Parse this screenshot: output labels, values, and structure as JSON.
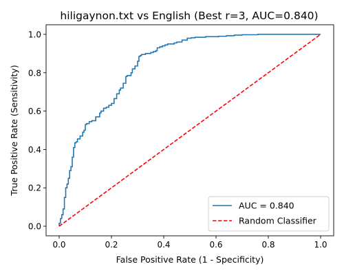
{
  "chart_data": {
    "type": "line",
    "title": "hiligaynon.txt vs English (Best r=3, AUC=0.840)",
    "xlabel": "False Positive Rate (1 - Specificity)",
    "ylabel": "True Positive Rate (Sensitivity)",
    "xlim": [
      -0.05,
      1.05
    ],
    "ylim": [
      -0.05,
      1.05
    ],
    "xticks": [
      "0.0",
      "0.2",
      "0.4",
      "0.6",
      "0.8",
      "1.0"
    ],
    "yticks": [
      "0.0",
      "0.2",
      "0.4",
      "0.6",
      "0.8",
      "1.0"
    ],
    "grid": false,
    "legend_position": "lower-right",
    "series": [
      {
        "name": "AUC = 0.840",
        "color": "#1f77b4",
        "style": "solid",
        "x": [
          0.0,
          0.0,
          0.005,
          0.005,
          0.01,
          0.01,
          0.015,
          0.015,
          0.02,
          0.02,
          0.025,
          0.025,
          0.03,
          0.03,
          0.035,
          0.035,
          0.04,
          0.04,
          0.045,
          0.045,
          0.05,
          0.05,
          0.055,
          0.055,
          0.06,
          0.06,
          0.065,
          0.065,
          0.07,
          0.07,
          0.08,
          0.08,
          0.09,
          0.09,
          0.095,
          0.095,
          0.1,
          0.1,
          0.105,
          0.105,
          0.115,
          0.115,
          0.125,
          0.125,
          0.14,
          0.14,
          0.155,
          0.155,
          0.16,
          0.16,
          0.17,
          0.17,
          0.18,
          0.18,
          0.19,
          0.19,
          0.2,
          0.2,
          0.21,
          0.21,
          0.22,
          0.22,
          0.23,
          0.23,
          0.235,
          0.235,
          0.245,
          0.245,
          0.255,
          0.255,
          0.26,
          0.26,
          0.275,
          0.275,
          0.28,
          0.28,
          0.29,
          0.29,
          0.3,
          0.3,
          0.305,
          0.305,
          0.31,
          0.31,
          0.315,
          0.315,
          0.33,
          0.33,
          0.35,
          0.35,
          0.36,
          0.36,
          0.37,
          0.37,
          0.375,
          0.375,
          0.385,
          0.385,
          0.395,
          0.395,
          0.405,
          0.405,
          0.415,
          0.415,
          0.44,
          0.44,
          0.45,
          0.45,
          0.47,
          0.47,
          0.49,
          0.49,
          0.505,
          0.505,
          0.52,
          0.52,
          0.56,
          0.56,
          0.61,
          0.61,
          0.64,
          0.64,
          0.67,
          0.67,
          0.7,
          0.7,
          0.76,
          0.76,
          1.0
        ],
        "y": [
          0.0,
          0.015,
          0.015,
          0.04,
          0.04,
          0.06,
          0.06,
          0.09,
          0.09,
          0.15,
          0.15,
          0.2,
          0.2,
          0.22,
          0.22,
          0.25,
          0.25,
          0.29,
          0.29,
          0.31,
          0.31,
          0.36,
          0.36,
          0.41,
          0.41,
          0.435,
          0.435,
          0.44,
          0.44,
          0.455,
          0.455,
          0.47,
          0.47,
          0.49,
          0.49,
          0.5,
          0.5,
          0.53,
          0.53,
          0.535,
          0.535,
          0.545,
          0.545,
          0.55,
          0.55,
          0.57,
          0.57,
          0.59,
          0.59,
          0.6,
          0.6,
          0.615,
          0.615,
          0.62,
          0.62,
          0.63,
          0.63,
          0.64,
          0.64,
          0.665,
          0.665,
          0.69,
          0.69,
          0.71,
          0.71,
          0.72,
          0.72,
          0.745,
          0.745,
          0.78,
          0.78,
          0.785,
          0.785,
          0.8,
          0.8,
          0.82,
          0.82,
          0.835,
          0.835,
          0.86,
          0.86,
          0.885,
          0.885,
          0.89,
          0.89,
          0.895,
          0.895,
          0.9,
          0.9,
          0.905,
          0.905,
          0.91,
          0.91,
          0.915,
          0.915,
          0.93,
          0.93,
          0.935,
          0.935,
          0.94,
          0.94,
          0.945,
          0.945,
          0.95,
          0.95,
          0.955,
          0.955,
          0.96,
          0.96,
          0.97,
          0.97,
          0.98,
          0.98,
          0.982,
          0.982,
          0.985,
          0.985,
          0.988,
          0.988,
          0.99,
          0.99,
          0.993,
          0.993,
          0.996,
          0.996,
          0.998,
          0.998,
          1.0,
          1.0
        ]
      },
      {
        "name": "Random Classifier",
        "color": "#ff0000",
        "style": "dashed",
        "x": [
          0,
          1
        ],
        "y": [
          0,
          1
        ]
      }
    ]
  }
}
